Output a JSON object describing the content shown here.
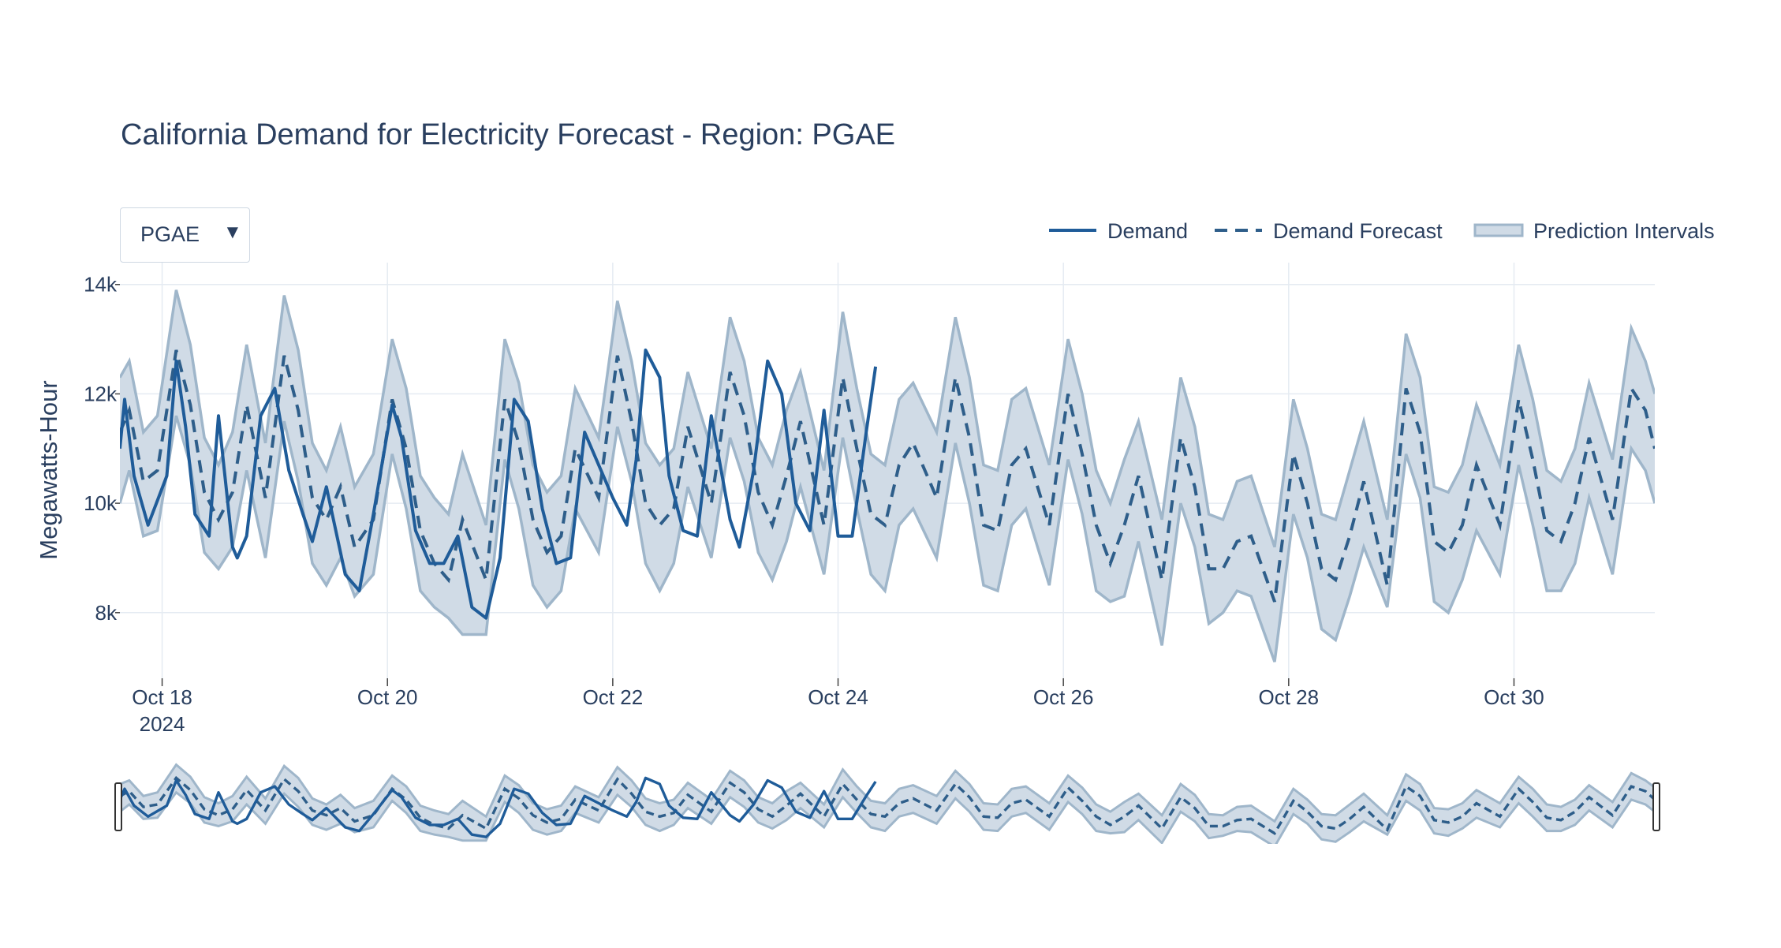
{
  "chart_data": {
    "type": "line",
    "title": "California Demand for Electricity Forecast - Region: PGAE",
    "ylabel": "Megawatts-Hour",
    "xlabel": "",
    "ylim": [
      6800,
      14400
    ],
    "xlim": [
      "2024-10-17T15:00",
      "2024-10-31T06:00"
    ],
    "x_ticks": [
      {
        "date": "2024-10-18",
        "label": "Oct 18",
        "sublabel": "2024"
      },
      {
        "date": "2024-10-20",
        "label": "Oct 20",
        "sublabel": ""
      },
      {
        "date": "2024-10-22",
        "label": "Oct 22",
        "sublabel": ""
      },
      {
        "date": "2024-10-24",
        "label": "Oct 24",
        "sublabel": ""
      },
      {
        "date": "2024-10-26",
        "label": "Oct 26",
        "sublabel": ""
      },
      {
        "date": "2024-10-28",
        "label": "Oct 28",
        "sublabel": ""
      },
      {
        "date": "2024-10-30",
        "label": "Oct 30",
        "sublabel": ""
      }
    ],
    "y_ticks": [
      {
        "value": 8000,
        "label": "8k"
      },
      {
        "value": 10000,
        "label": "10k"
      },
      {
        "value": 12000,
        "label": "12k"
      },
      {
        "value": 14000,
        "label": "14k"
      }
    ],
    "grid": true,
    "legend_position": "top-right",
    "colors": {
      "demand": "#1f5c99",
      "forecast": "#2e5e8a",
      "band_fill": "#d0dbe6",
      "band_line": "#9fb6ca",
      "grid": "#e5ebf2"
    },
    "series": [
      {
        "name": "Demand",
        "style": "solid",
        "x": [
          "2024-10-17T15:00",
          "2024-10-17T16:00",
          "2024-10-17T18:00",
          "2024-10-17T21:00",
          "2024-10-18T01:00",
          "2024-10-18T03:00",
          "2024-10-18T05:00",
          "2024-10-18T07:00",
          "2024-10-18T10:00",
          "2024-10-18T12:00",
          "2024-10-18T15:00",
          "2024-10-18T16:00",
          "2024-10-18T18:00",
          "2024-10-18T21:00",
          "2024-10-19T00:00",
          "2024-10-19T03:00",
          "2024-10-19T06:00",
          "2024-10-19T08:00",
          "2024-10-19T11:00",
          "2024-10-19T15:00",
          "2024-10-19T18:00",
          "2024-10-19T21:00",
          "2024-10-20T01:00",
          "2024-10-20T03:00",
          "2024-10-20T06:00",
          "2024-10-20T09:00",
          "2024-10-20T12:00",
          "2024-10-20T15:00",
          "2024-10-20T18:00",
          "2024-10-20T21:00",
          "2024-10-21T00:00",
          "2024-10-21T03:00",
          "2024-10-21T06:00",
          "2024-10-21T09:00",
          "2024-10-21T12:00",
          "2024-10-21T15:00",
          "2024-10-21T18:00",
          "2024-10-22T00:00",
          "2024-10-22T03:00",
          "2024-10-22T05:00",
          "2024-10-22T07:00",
          "2024-10-22T10:00",
          "2024-10-22T12:00",
          "2024-10-22T15:00",
          "2024-10-22T18:00",
          "2024-10-22T21:00",
          "2024-10-23T01:00",
          "2024-10-23T03:00",
          "2024-10-23T06:00",
          "2024-10-23T09:00",
          "2024-10-23T12:00",
          "2024-10-23T15:00",
          "2024-10-23T18:00",
          "2024-10-23T21:00",
          "2024-10-24T00:00",
          "2024-10-24T03:00",
          "2024-10-24T06:00",
          "2024-10-24T08:00"
        ],
        "values": [
          11000,
          11900,
          10500,
          9600,
          10500,
          12600,
          11400,
          9800,
          9400,
          11600,
          9200,
          9000,
          9400,
          11600,
          12100,
          10600,
          9800,
          9300,
          10300,
          8700,
          8400,
          9800,
          11800,
          11200,
          9500,
          8900,
          8900,
          9400,
          8100,
          7900,
          9000,
          11900,
          11500,
          9900,
          8900,
          9000,
          11300,
          10100,
          9600,
          10800,
          12800,
          12300,
          10500,
          9500,
          9400,
          11600,
          9700,
          9200,
          10600,
          12600,
          12000,
          10000,
          9500,
          11700,
          9400,
          9400,
          11300,
          12500
        ]
      },
      {
        "name": "Demand Forecast",
        "style": "dash",
        "x": [
          "2024-10-17T15:00",
          "2024-10-17T17:00",
          "2024-10-17T20:00",
          "2024-10-17T23:00",
          "2024-10-18T03:00",
          "2024-10-18T06:00",
          "2024-10-18T09:00",
          "2024-10-18T12:00",
          "2024-10-18T15:00",
          "2024-10-18T18:00",
          "2024-10-18T22:00",
          "2024-10-19T02:00",
          "2024-10-19T05:00",
          "2024-10-19T08:00",
          "2024-10-19T11:00",
          "2024-10-19T14:00",
          "2024-10-19T17:00",
          "2024-10-19T21:00",
          "2024-10-20T01:00",
          "2024-10-20T04:00",
          "2024-10-20T07:00",
          "2024-10-20T10:00",
          "2024-10-20T13:00",
          "2024-10-20T16:00",
          "2024-10-20T21:00",
          "2024-10-21T01:00",
          "2024-10-21T04:00",
          "2024-10-21T07:00",
          "2024-10-21T10:00",
          "2024-10-21T13:00",
          "2024-10-21T16:00",
          "2024-10-21T21:00",
          "2024-10-22T01:00",
          "2024-10-22T04:00",
          "2024-10-22T07:00",
          "2024-10-22T10:00",
          "2024-10-22T13:00",
          "2024-10-22T16:00",
          "2024-10-22T21:00",
          "2024-10-23T01:00",
          "2024-10-23T04:00",
          "2024-10-23T07:00",
          "2024-10-23T10:00",
          "2024-10-23T13:00",
          "2024-10-23T16:00",
          "2024-10-23T21:00",
          "2024-10-24T01:00",
          "2024-10-24T04:00",
          "2024-10-24T07:00",
          "2024-10-24T10:00",
          "2024-10-24T13:00",
          "2024-10-24T16:00",
          "2024-10-24T21:00",
          "2024-10-25T01:00",
          "2024-10-25T04:00",
          "2024-10-25T07:00",
          "2024-10-25T10:00",
          "2024-10-25T13:00",
          "2024-10-25T16:00",
          "2024-10-25T21:00",
          "2024-10-26T01:00",
          "2024-10-26T04:00",
          "2024-10-26T07:00",
          "2024-10-26T10:00",
          "2024-10-26T13:00",
          "2024-10-26T16:00",
          "2024-10-26T21:00",
          "2024-10-27T01:00",
          "2024-10-27T04:00",
          "2024-10-27T07:00",
          "2024-10-27T10:00",
          "2024-10-27T13:00",
          "2024-10-27T16:00",
          "2024-10-27T21:00",
          "2024-10-28T01:00",
          "2024-10-28T04:00",
          "2024-10-28T07:00",
          "2024-10-28T10:00",
          "2024-10-28T13:00",
          "2024-10-28T16:00",
          "2024-10-28T21:00",
          "2024-10-29T01:00",
          "2024-10-29T04:00",
          "2024-10-29T07:00",
          "2024-10-29T10:00",
          "2024-10-29T13:00",
          "2024-10-29T16:00",
          "2024-10-29T21:00",
          "2024-10-30T01:00",
          "2024-10-30T04:00",
          "2024-10-30T07:00",
          "2024-10-30T10:00",
          "2024-10-30T13:00",
          "2024-10-30T16:00",
          "2024-10-30T21:00",
          "2024-10-31T01:00",
          "2024-10-31T04:00",
          "2024-10-31T06:00"
        ],
        "values": [
          11300,
          11700,
          10400,
          10600,
          12800,
          11800,
          10200,
          9700,
          10200,
          11800,
          10100,
          12700,
          11700,
          10100,
          9700,
          10300,
          9200,
          9700,
          11900,
          11000,
          9500,
          8900,
          8600,
          9700,
          8600,
          11900,
          11100,
          9700,
          9100,
          9400,
          11000,
          10100,
          12700,
          11500,
          10000,
          9600,
          9900,
          11400,
          10000,
          12400,
          11600,
          10200,
          9600,
          10500,
          11500,
          9600,
          12300,
          11000,
          9800,
          9600,
          10700,
          11100,
          10100,
          12300,
          11200,
          9600,
          9500,
          10700,
          11000,
          9600,
          12000,
          10900,
          9600,
          8900,
          9600,
          10500,
          8600,
          11200,
          10300,
          8800,
          8800,
          9300,
          9400,
          8200,
          10900,
          10000,
          8800,
          8600,
          9400,
          10400,
          8500,
          12100,
          11300,
          9300,
          9100,
          9600,
          10700,
          9600,
          11900,
          10800,
          9500,
          9300,
          10000,
          11200,
          9700,
          12100,
          11700,
          11000
        ]
      },
      {
        "name": "Prediction Intervals",
        "style": "band",
        "x": [
          "2024-10-17T15:00",
          "2024-10-17T17:00",
          "2024-10-17T20:00",
          "2024-10-17T23:00",
          "2024-10-18T03:00",
          "2024-10-18T06:00",
          "2024-10-18T09:00",
          "2024-10-18T12:00",
          "2024-10-18T15:00",
          "2024-10-18T18:00",
          "2024-10-18T22:00",
          "2024-10-19T02:00",
          "2024-10-19T05:00",
          "2024-10-19T08:00",
          "2024-10-19T11:00",
          "2024-10-19T14:00",
          "2024-10-19T17:00",
          "2024-10-19T21:00",
          "2024-10-20T01:00",
          "2024-10-20T04:00",
          "2024-10-20T07:00",
          "2024-10-20T10:00",
          "2024-10-20T13:00",
          "2024-10-20T16:00",
          "2024-10-20T21:00",
          "2024-10-21T01:00",
          "2024-10-21T04:00",
          "2024-10-21T07:00",
          "2024-10-21T10:00",
          "2024-10-21T13:00",
          "2024-10-21T16:00",
          "2024-10-21T21:00",
          "2024-10-22T01:00",
          "2024-10-22T04:00",
          "2024-10-22T07:00",
          "2024-10-22T10:00",
          "2024-10-22T13:00",
          "2024-10-22T16:00",
          "2024-10-22T21:00",
          "2024-10-23T01:00",
          "2024-10-23T04:00",
          "2024-10-23T07:00",
          "2024-10-23T10:00",
          "2024-10-23T13:00",
          "2024-10-23T16:00",
          "2024-10-23T21:00",
          "2024-10-24T01:00",
          "2024-10-24T04:00",
          "2024-10-24T07:00",
          "2024-10-24T10:00",
          "2024-10-24T13:00",
          "2024-10-24T16:00",
          "2024-10-24T21:00",
          "2024-10-25T01:00",
          "2024-10-25T04:00",
          "2024-10-25T07:00",
          "2024-10-25T10:00",
          "2024-10-25T13:00",
          "2024-10-25T16:00",
          "2024-10-25T21:00",
          "2024-10-26T01:00",
          "2024-10-26T04:00",
          "2024-10-26T07:00",
          "2024-10-26T10:00",
          "2024-10-26T13:00",
          "2024-10-26T16:00",
          "2024-10-26T21:00",
          "2024-10-27T01:00",
          "2024-10-27T04:00",
          "2024-10-27T07:00",
          "2024-10-27T10:00",
          "2024-10-27T13:00",
          "2024-10-27T16:00",
          "2024-10-27T21:00",
          "2024-10-28T01:00",
          "2024-10-28T04:00",
          "2024-10-28T07:00",
          "2024-10-28T10:00",
          "2024-10-28T13:00",
          "2024-10-28T16:00",
          "2024-10-28T21:00",
          "2024-10-29T01:00",
          "2024-10-29T04:00",
          "2024-10-29T07:00",
          "2024-10-29T10:00",
          "2024-10-29T13:00",
          "2024-10-29T16:00",
          "2024-10-29T21:00",
          "2024-10-30T01:00",
          "2024-10-30T04:00",
          "2024-10-30T07:00",
          "2024-10-30T10:00",
          "2024-10-30T13:00",
          "2024-10-30T16:00",
          "2024-10-30T21:00",
          "2024-10-31T01:00",
          "2024-10-31T04:00",
          "2024-10-31T06:00"
        ],
        "lower": [
          10000,
          10600,
          9400,
          9500,
          11600,
          10700,
          9100,
          8800,
          9200,
          10600,
          9000,
          11500,
          10400,
          8900,
          8500,
          9000,
          8300,
          8700,
          10900,
          9900,
          8400,
          8100,
          7900,
          7600,
          7600,
          10800,
          9900,
          8500,
          8100,
          8400,
          9900,
          9100,
          11400,
          10400,
          8900,
          8400,
          8900,
          10300,
          9000,
          11200,
          10400,
          9100,
          8600,
          9300,
          10300,
          8700,
          11200,
          9900,
          8700,
          8400,
          9600,
          9900,
          9000,
          11100,
          10000,
          8500,
          8400,
          9600,
          9900,
          8500,
          10800,
          9800,
          8400,
          8200,
          8300,
          9300,
          7400,
          10000,
          9200,
          7800,
          8000,
          8400,
          8300,
          7100,
          9800,
          9000,
          7700,
          7500,
          8300,
          9200,
          8100,
          10900,
          10100,
          8200,
          8000,
          8600,
          9500,
          8700,
          10700,
          9600,
          8400,
          8400,
          8900,
          10100,
          8700,
          11000,
          10600,
          10000
        ],
        "upper": [
          12300,
          12600,
          11300,
          11600,
          13900,
          12900,
          11200,
          10700,
          11300,
          12900,
          11100,
          13800,
          12800,
          11100,
          10600,
          11400,
          10300,
          10900,
          13000,
          12100,
          10500,
          10100,
          9800,
          10900,
          9600,
          13000,
          12200,
          10700,
          10200,
          10500,
          12100,
          11200,
          13700,
          12600,
          11100,
          10700,
          11000,
          12400,
          11000,
          13400,
          12600,
          11200,
          10700,
          11700,
          12400,
          10600,
          13500,
          12100,
          10900,
          10700,
          11900,
          12200,
          11300,
          13400,
          12300,
          10700,
          10600,
          11900,
          12100,
          10700,
          13000,
          12000,
          10600,
          10000,
          10800,
          11500,
          9700,
          12300,
          11400,
          9800,
          9700,
          10400,
          10500,
          9200,
          11900,
          11000,
          9800,
          9700,
          10600,
          11500,
          9700,
          13100,
          12300,
          10300,
          10200,
          10700,
          11800,
          10700,
          12900,
          11900,
          10600,
          10400,
          11000,
          12200,
          10800,
          13200,
          12600,
          12000
        ]
      }
    ]
  },
  "dropdown": {
    "selected": "PGAE",
    "arrow": "▼"
  },
  "legend": {
    "demand": "Demand",
    "forecast": "Demand Forecast",
    "band": "Prediction Intervals"
  }
}
